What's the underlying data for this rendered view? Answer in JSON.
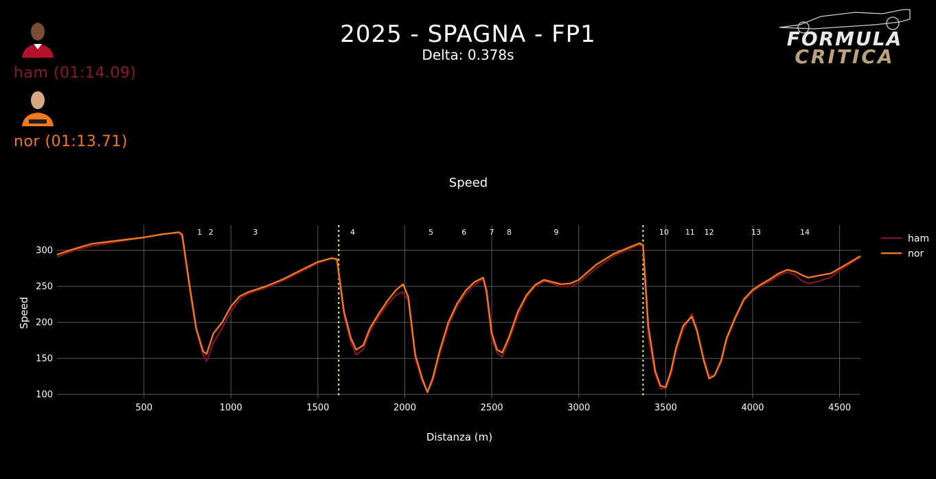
{
  "header": {
    "title": "2025 - SPAGNA - FP1",
    "subtitle": "Delta: 0.378s"
  },
  "drivers": [
    {
      "label": "ham (01:14.09)",
      "color": "#8b1a2b"
    },
    {
      "label": "nor (01:13.71)",
      "color": "#f0781f"
    }
  ],
  "logo": {
    "line1": "FORMULA",
    "line2": "CRITICA"
  },
  "chart_data": {
    "type": "line",
    "title": "Speed",
    "xlabel": "Distanza (m)",
    "ylabel": "Speed",
    "xlim": [
      0,
      4620
    ],
    "ylim": [
      95,
      335
    ],
    "xticks": [
      500,
      1000,
      1500,
      2000,
      2500,
      3000,
      3500,
      4000,
      4500
    ],
    "yticks": [
      100,
      150,
      200,
      250,
      300
    ],
    "grid": true,
    "legend_position": "top-right",
    "sector_lines": [
      1620,
      3370
    ],
    "corners": [
      {
        "label": "1",
        "x": 820
      },
      {
        "label": "2",
        "x": 885
      },
      {
        "label": "3",
        "x": 1140
      },
      {
        "label": "4",
        "x": 1700
      },
      {
        "label": "5",
        "x": 2150
      },
      {
        "label": "6",
        "x": 2340
      },
      {
        "label": "7",
        "x": 2500
      },
      {
        "label": "8",
        "x": 2600
      },
      {
        "label": "9",
        "x": 2870
      },
      {
        "label": "10",
        "x": 3490
      },
      {
        "label": "11",
        "x": 3640
      },
      {
        "label": "12",
        "x": 3750
      },
      {
        "label": "13",
        "x": 4020
      },
      {
        "label": "14",
        "x": 4300
      }
    ],
    "series": [
      {
        "name": "ham",
        "color": "#7a1526",
        "x": [
          0,
          100,
          200,
          300,
          400,
          500,
          600,
          700,
          720,
          760,
          800,
          840,
          860,
          900,
          950,
          1000,
          1050,
          1100,
          1200,
          1300,
          1400,
          1500,
          1580,
          1610,
          1650,
          1690,
          1720,
          1760,
          1800,
          1850,
          1900,
          1950,
          1990,
          2020,
          2060,
          2100,
          2130,
          2160,
          2200,
          2250,
          2300,
          2350,
          2400,
          2450,
          2470,
          2500,
          2530,
          2560,
          2600,
          2650,
          2700,
          2750,
          2800,
          2850,
          2900,
          2950,
          3000,
          3100,
          3200,
          3300,
          3350,
          3370,
          3400,
          3440,
          3470,
          3500,
          3530,
          3560,
          3600,
          3650,
          3680,
          3720,
          3750,
          3780,
          3820,
          3850,
          3900,
          3950,
          4000,
          4050,
          4100,
          4150,
          4200,
          4250,
          4280,
          4320,
          4380,
          4450,
          4500,
          4550,
          4620
        ],
        "y": [
          291,
          300,
          306,
          310,
          314,
          318,
          322,
          325,
          318,
          250,
          190,
          155,
          146,
          172,
          192,
          215,
          232,
          240,
          248,
          258,
          270,
          282,
          290,
          286,
          210,
          172,
          155,
          162,
          188,
          208,
          225,
          238,
          242,
          230,
          150,
          118,
          104,
          118,
          155,
          195,
          222,
          240,
          252,
          260,
          238,
          178,
          158,
          152,
          175,
          210,
          235,
          250,
          257,
          254,
          250,
          250,
          255,
          275,
          292,
          303,
          308,
          305,
          180,
          128,
          108,
          108,
          128,
          160,
          190,
          212,
          192,
          150,
          126,
          126,
          145,
          175,
          205,
          230,
          243,
          251,
          257,
          265,
          270,
          265,
          258,
          254,
          257,
          263,
          272,
          280,
          291
        ]
      },
      {
        "name": "nor",
        "color": "#f0781f",
        "x": [
          0,
          100,
          200,
          300,
          400,
          500,
          600,
          700,
          720,
          760,
          800,
          840,
          860,
          900,
          950,
          1000,
          1050,
          1100,
          1200,
          1300,
          1400,
          1500,
          1580,
          1610,
          1650,
          1690,
          1720,
          1760,
          1800,
          1850,
          1900,
          1950,
          1990,
          2020,
          2060,
          2100,
          2130,
          2160,
          2200,
          2250,
          2300,
          2350,
          2400,
          2450,
          2470,
          2500,
          2530,
          2560,
          2600,
          2650,
          2700,
          2750,
          2800,
          2850,
          2900,
          2950,
          3000,
          3100,
          3200,
          3300,
          3350,
          3370,
          3400,
          3440,
          3470,
          3500,
          3530,
          3560,
          3600,
          3650,
          3680,
          3720,
          3750,
          3780,
          3820,
          3850,
          3900,
          3950,
          4000,
          4050,
          4100,
          4150,
          4200,
          4250,
          4280,
          4320,
          4380,
          4450,
          4500,
          4550,
          4620
        ],
        "y": [
          294,
          302,
          309,
          312,
          315,
          318,
          322,
          325,
          322,
          255,
          192,
          160,
          156,
          185,
          200,
          222,
          236,
          242,
          250,
          260,
          272,
          284,
          289,
          288,
          215,
          178,
          162,
          168,
          192,
          212,
          230,
          245,
          253,
          235,
          155,
          122,
          103,
          122,
          160,
          200,
          226,
          244,
          256,
          262,
          244,
          185,
          162,
          158,
          180,
          215,
          238,
          252,
          259,
          256,
          253,
          254,
          259,
          280,
          295,
          305,
          310,
          307,
          195,
          132,
          112,
          110,
          132,
          165,
          195,
          208,
          188,
          146,
          122,
          126,
          148,
          178,
          207,
          232,
          245,
          253,
          260,
          268,
          273,
          270,
          266,
          262,
          265,
          268,
          275,
          282,
          292
        ]
      }
    ]
  }
}
